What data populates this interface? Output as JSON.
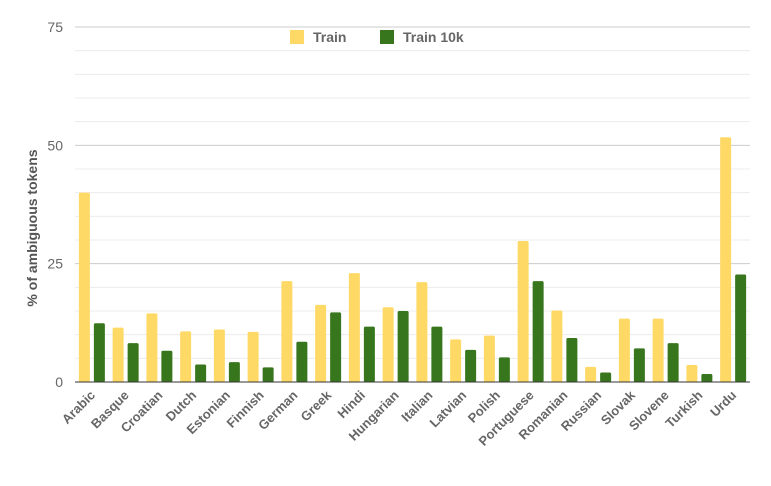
{
  "chart_data": {
    "type": "bar",
    "title": "",
    "xlabel": "",
    "ylabel": "% of ambiguous tokens",
    "ylim": [
      0,
      75
    ],
    "y_ticks": [
      "0",
      "25",
      "50",
      "75"
    ],
    "grid": true,
    "legend_position": "top",
    "categories": [
      "Arabic",
      "Basque",
      "Croatian",
      "Dutch",
      "Estonian",
      "Finnish",
      "German",
      "Greek",
      "Hindi",
      "Hungarian",
      "Italian",
      "Latvian",
      "Polish",
      "Portuguese",
      "Romanian",
      "Russian",
      "Slovak",
      "Slovene",
      "Turkish",
      "Urdu"
    ],
    "series": [
      {
        "name": "Train",
        "color": "#FFD966",
        "values": [
          40,
          11.5,
          14.5,
          10.7,
          11.1,
          10.6,
          21.3,
          16.3,
          23,
          15.8,
          21.1,
          9,
          9.8,
          29.8,
          15.1,
          3.2,
          13.4,
          13.4,
          3.6,
          51.7
        ]
      },
      {
        "name": "Train 10k",
        "color": "#38761D",
        "values": [
          12.4,
          8.2,
          6.6,
          3.7,
          4.2,
          3.1,
          8.5,
          14.7,
          11.7,
          15,
          11.7,
          6.8,
          5.2,
          21.3,
          9.3,
          2,
          7.1,
          8.2,
          1.7,
          22.7
        ]
      }
    ]
  }
}
